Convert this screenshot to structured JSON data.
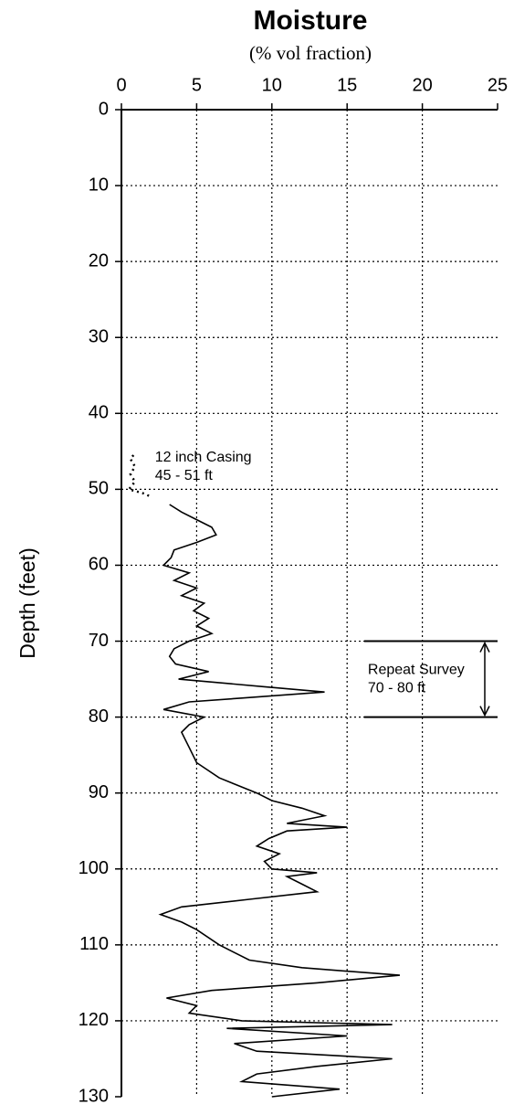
{
  "chart_data": {
    "type": "line",
    "title": "Moisture",
    "subtitle": "(% vol fraction)",
    "y_label": "Depth (feet)",
    "xlim": [
      0,
      25
    ],
    "xticks": [
      0,
      5,
      10,
      15,
      20,
      25
    ],
    "ylim": [
      0,
      130
    ],
    "yticks": [
      0,
      10,
      20,
      30,
      40,
      50,
      60,
      70,
      80,
      90,
      100,
      110,
      120,
      130
    ],
    "y_inverted": true,
    "x_axis_position": "top",
    "grid": true,
    "series": [
      {
        "color": "#000000",
        "style": "solid",
        "depth": [
          52,
          53,
          54,
          55,
          56,
          57,
          58,
          59,
          60,
          61,
          62,
          63,
          64,
          65,
          66,
          67,
          68,
          69,
          70,
          71,
          72,
          73,
          74,
          75,
          76,
          76.7,
          77.5,
          78,
          79,
          80,
          81,
          82,
          84,
          86,
          88,
          90,
          91,
          92,
          93,
          94,
          94.5,
          95,
          96,
          97,
          98,
          99,
          100,
          100.5,
          101,
          102,
          103,
          104,
          105,
          106,
          107,
          108,
          110,
          112,
          113,
          114,
          115,
          116,
          117,
          118,
          119,
          120,
          120.5,
          121,
          122,
          123,
          124,
          125,
          126,
          127,
          128,
          129,
          130
        ],
        "values": [
          3.2,
          4,
          5,
          6,
          6.3,
          5,
          3.5,
          3.3,
          2.8,
          4.5,
          3.5,
          5,
          4,
          5.5,
          4.8,
          5.8,
          5,
          6,
          4.5,
          3.5,
          3.2,
          3.6,
          5.8,
          3.8,
          9.5,
          13.5,
          8,
          4.5,
          2.8,
          5.5,
          4.5,
          4,
          4.5,
          5,
          6.5,
          9,
          10,
          12,
          13.5,
          11,
          15,
          11,
          9.8,
          9,
          10.5,
          9.5,
          10,
          13,
          11,
          12,
          13,
          8.5,
          4,
          2.6,
          4,
          5,
          6.5,
          8.5,
          12,
          18.5,
          13,
          6,
          3,
          5,
          4.5,
          8,
          18,
          7,
          15,
          7.5,
          9,
          18,
          13,
          9,
          8,
          14.5,
          10
        ]
      },
      {
        "color": "#000000",
        "style": "dotted",
        "depth": [
          45.5,
          46,
          47,
          48,
          49,
          50,
          50.5,
          51
        ],
        "values": [
          0.8,
          0.6,
          0.9,
          0.6,
          0.9,
          0.5,
          1.4,
          2
        ]
      }
    ],
    "annotations": [
      {
        "lines": [
          "12 inch Casing",
          "45 - 51 ft"
        ],
        "depth": 48,
        "at": 1.5
      },
      {
        "lines": [
          "Repeat Survey",
          "70 - 80 ft"
        ],
        "range": [
          70,
          80
        ],
        "at": 16.5
      }
    ]
  }
}
